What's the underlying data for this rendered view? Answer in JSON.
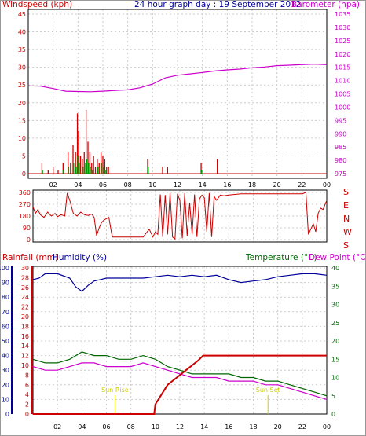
{
  "colors": {
    "red": "#cc0000",
    "magenta": "#cc00cc",
    "navy": "#000099",
    "green": "#006600",
    "darkgreen": "#006600",
    "grid": "#cccccc",
    "border": "#000000",
    "axisText": "#000000",
    "sunLabel": "#cccc00",
    "barGreen": "#009900"
  },
  "chart_data": [
    {
      "id": "wind-baro",
      "type": "line",
      "title": "24 hour graph day : 19 September 2012",
      "left_axis_label": "Windspeed (kph)",
      "right_axis_label": "Barometer (hpa)",
      "x_ticks": [
        "02",
        "04",
        "06",
        "08",
        "10",
        "12",
        "14",
        "16",
        "18",
        "20",
        "22",
        "00"
      ],
      "x_range_hours": [
        0,
        24
      ],
      "wind_axis": {
        "min": 0,
        "max": 45,
        "ticks": [
          0,
          5,
          10,
          15,
          20,
          25,
          30,
          35,
          40,
          45
        ]
      },
      "baro_axis": {
        "min": 975,
        "max": 1035,
        "ticks": [
          975,
          980,
          985,
          990,
          995,
          1000,
          1005,
          1010,
          1015,
          1020,
          1025,
          1030,
          1035
        ]
      },
      "series": [
        {
          "name": "Barometer (hpa)",
          "axis": "right",
          "x": [
            0,
            1,
            2,
            3,
            4,
            5,
            6,
            7,
            8,
            9,
            10,
            11,
            12,
            13,
            14,
            15,
            16,
            17,
            18,
            19,
            20,
            21,
            22,
            23,
            24
          ],
          "values": [
            1008,
            1007.9,
            1007,
            1006,
            1005.9,
            1005.8,
            1006,
            1006.3,
            1006.5,
            1007.3,
            1008.7,
            1011,
            1012,
            1012.5,
            1013,
            1013.6,
            1014,
            1014.3,
            1014.8,
            1015.1,
            1015.6,
            1015.8,
            1016,
            1016.2,
            1016
          ]
        },
        {
          "name": "Wind gust (kph)",
          "axis": "left",
          "x": [
            1.1,
            1.6,
            2.0,
            2.4,
            2.8,
            3.2,
            3.4,
            3.6,
            3.8,
            3.95,
            4.05,
            4.2,
            4.35,
            4.5,
            4.65,
            4.8,
            4.95,
            5.1,
            5.25,
            5.4,
            5.55,
            5.7,
            5.85,
            6.0,
            6.15,
            6.3,
            6.45,
            9.6,
            10.8,
            11.2,
            13.9,
            15.2
          ],
          "values": [
            3,
            1,
            2,
            1,
            3,
            6,
            3,
            8,
            6,
            17,
            12,
            5,
            4,
            6,
            18,
            9,
            6,
            3,
            5,
            2,
            4,
            3,
            6,
            5,
            4,
            2,
            2,
            4,
            2,
            2,
            3,
            4
          ]
        },
        {
          "name": "Wind average (kph)",
          "axis": "left",
          "x": [
            1.1,
            2.8,
            3.2,
            3.6,
            3.8,
            3.95,
            4.05,
            4.35,
            4.5,
            4.65,
            4.8,
            4.95,
            5.1,
            5.55,
            5.85,
            6.0,
            6.15,
            9.6,
            13.9
          ],
          "values": [
            1,
            1,
            2,
            3,
            2,
            5,
            3,
            2,
            3,
            4,
            3,
            2,
            1,
            2,
            3,
            2,
            1,
            2,
            1
          ]
        }
      ]
    },
    {
      "id": "wind-dir",
      "type": "line",
      "title": "",
      "left_axis_label": "",
      "right_axis_labels": [
        "S",
        "E",
        "N",
        "W",
        "S"
      ],
      "axis": {
        "min": 0,
        "max": 360,
        "ticks": [
          0,
          90,
          180,
          270,
          360
        ]
      },
      "x_range_hours": [
        0,
        24
      ],
      "series": [
        {
          "name": "Wind direction (deg)",
          "x": [
            0,
            0.2,
            0.4,
            0.6,
            0.9,
            1.2,
            1.5,
            1.8,
            2.0,
            2.3,
            2.6,
            2.8,
            3.0,
            3.3,
            3.6,
            3.9,
            4.2,
            4.5,
            4.8,
            5.0,
            5.2,
            5.4,
            5.6,
            5.8,
            6.0,
            6.2,
            6.4,
            6.5,
            7.0,
            8.0,
            9.0,
            9.5,
            9.8,
            10.0,
            10.2,
            10.4,
            10.6,
            10.8,
            11.0,
            11.2,
            11.4,
            11.6,
            11.8,
            12.0,
            12.2,
            12.4,
            12.6,
            12.8,
            13.0,
            13.2,
            13.4,
            13.6,
            13.8,
            14.0,
            14.2,
            14.4,
            14.6,
            14.8,
            15.0,
            15.3,
            15.6,
            16.0,
            17.0,
            18.0,
            19.0,
            20.0,
            21.0,
            22.0,
            22.3,
            22.5,
            22.7,
            22.9,
            23.1,
            23.3,
            23.5,
            23.7,
            24.0
          ],
          "values": [
            250,
            200,
            230,
            190,
            170,
            210,
            180,
            200,
            175,
            190,
            180,
            355,
            300,
            200,
            180,
            210,
            190,
            185,
            195,
            170,
            30,
            90,
            130,
            150,
            160,
            170,
            60,
            20,
            20,
            20,
            20,
            80,
            20,
            60,
            40,
            345,
            20,
            340,
            40,
            355,
            20,
            5,
            350,
            300,
            10,
            355,
            30,
            280,
            40,
            345,
            20,
            310,
            340,
            320,
            60,
            355,
            20,
            330,
            300,
            340,
            335,
            340,
            350,
            350,
            350,
            350,
            350,
            350,
            360,
            40,
            80,
            120,
            60,
            200,
            240,
            230,
            300
          ]
        }
      ]
    },
    {
      "id": "rain-hum-temp",
      "type": "line",
      "title": "",
      "labels": {
        "rainfall": "Rainfall (mm)",
        "humidity": "Humidity (%)",
        "temperature": "Temperature (°C)",
        "dewpoint": "Dew Point (°C)"
      },
      "x_ticks": [
        "02",
        "04",
        "06",
        "08",
        "10",
        "12",
        "14",
        "16",
        "18",
        "20",
        "22",
        "00"
      ],
      "x_range_hours": [
        0,
        24
      ],
      "humidity_axis": {
        "min": 0,
        "max": 100,
        "ticks": [
          0,
          10,
          20,
          30,
          40,
          50,
          60,
          70,
          80,
          90,
          100
        ]
      },
      "rain_axis": {
        "min": 0,
        "max": 30,
        "ticks": [
          0,
          2,
          4,
          6,
          8,
          10,
          12,
          14,
          16,
          18,
          20,
          22,
          24,
          26,
          28,
          30
        ]
      },
      "temp_axis": {
        "min": 0,
        "max": 40,
        "ticks": [
          0,
          5,
          10,
          15,
          20,
          25,
          30,
          35,
          40
        ]
      },
      "sun_rise": {
        "label": "Sun Rise",
        "hour": 6.7
      },
      "sun_set": {
        "label": "Sun Set",
        "hour": 19.2
      },
      "series": [
        {
          "name": "Humidity (%)",
          "axis": "humidity",
          "x": [
            0,
            0.5,
            1,
            2,
            3,
            3.5,
            4,
            4.5,
            5,
            5.5,
            6,
            7,
            8,
            9,
            10,
            11,
            12,
            13,
            14,
            15,
            16,
            17,
            18,
            19,
            20,
            21,
            22,
            23,
            24
          ],
          "values": [
            92,
            93,
            96,
            96,
            93,
            87,
            84,
            88,
            91,
            92,
            93,
            93,
            93,
            93,
            94,
            95,
            94,
            95,
            94,
            95,
            92,
            90,
            91,
            92,
            94,
            95,
            96,
            96,
            95
          ]
        },
        {
          "name": "Temperature (°C)",
          "axis": "temp",
          "x": [
            0,
            1,
            2,
            3,
            4,
            5,
            6,
            7,
            8,
            9,
            10,
            11,
            12,
            13,
            14,
            15,
            16,
            17,
            18,
            19,
            20,
            21,
            22,
            23,
            24
          ],
          "values": [
            15,
            14,
            14,
            15,
            17,
            16,
            16,
            15,
            15,
            16,
            15,
            13,
            12,
            11,
            11,
            11,
            11,
            10,
            10,
            9,
            9,
            8,
            7,
            6,
            5
          ]
        },
        {
          "name": "Dew Point (°C)",
          "axis": "temp",
          "x": [
            0,
            1,
            2,
            3,
            4,
            5,
            6,
            7,
            8,
            9,
            10,
            11,
            12,
            13,
            14,
            15,
            16,
            17,
            18,
            19,
            20,
            21,
            22,
            23,
            24
          ],
          "values": [
            13,
            12,
            12,
            13,
            14,
            14,
            13,
            13,
            13,
            14,
            13,
            12,
            11,
            10,
            10,
            10,
            9,
            9,
            9,
            8,
            8,
            7,
            6,
            5,
            4
          ]
        },
        {
          "name": "Rainfall (mm)",
          "axis": "rain",
          "x": [
            0,
            9.9,
            10.0,
            10.5,
            11.0,
            11.5,
            12.0,
            12.5,
            13.0,
            13.5,
            13.9,
            20.0,
            24.0
          ],
          "values": [
            0,
            0,
            2,
            4,
            6,
            7,
            8,
            9,
            10,
            11,
            12,
            12,
            12
          ]
        }
      ]
    }
  ]
}
